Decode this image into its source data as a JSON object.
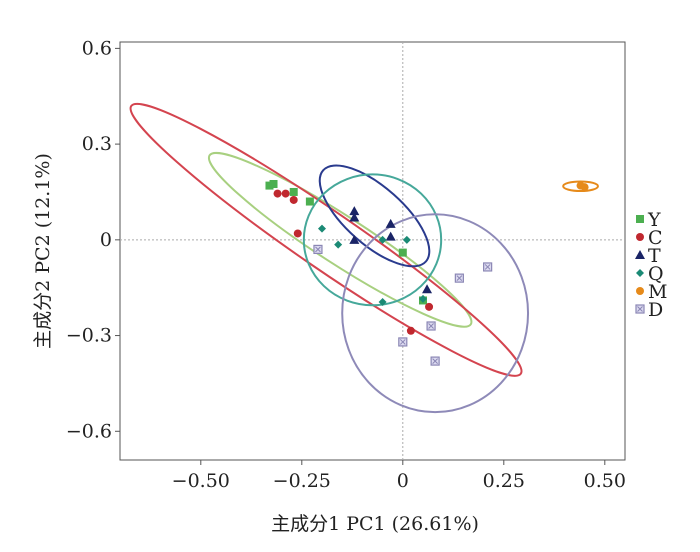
{
  "chart_data": {
    "type": "scatter",
    "title": "",
    "xlabel": "主成分1  PC1 (26.61%)",
    "ylabel": "主成分2  PC2 (12.1%)",
    "xlim": [
      -0.7,
      0.55
    ],
    "ylim": [
      -0.69,
      0.62
    ],
    "x_ticks": [
      -0.5,
      -0.25,
      0,
      0.25,
      0.5
    ],
    "x_tick_labels": [
      "−0.50",
      "−0.25",
      "0",
      "0.25",
      "0.50"
    ],
    "y_ticks": [
      -0.6,
      -0.3,
      0,
      0.3,
      0.6
    ],
    "y_tick_labels": [
      "−0.6",
      "−0.3",
      "0",
      "0.3",
      "0.6"
    ],
    "zero_lines": true,
    "grid": false,
    "legend_position": "right",
    "series": [
      {
        "name": "Y",
        "color": "#4caf50",
        "marker": "square",
        "points": [
          [
            -0.33,
            0.17
          ],
          [
            -0.32,
            0.175
          ],
          [
            -0.27,
            0.15
          ],
          [
            -0.23,
            0.12
          ],
          [
            0.0,
            -0.04
          ],
          [
            0.05,
            -0.19
          ]
        ],
        "ellipse": {
          "cx": -0.155,
          "cy": 0.0,
          "rx": 0.385,
          "ry": 0.075,
          "angle_deg": 32.9,
          "color": "#a8d080"
        }
      },
      {
        "name": "C",
        "color": "#c0282f",
        "marker": "circle",
        "points": [
          [
            -0.31,
            0.145
          ],
          [
            -0.29,
            0.145
          ],
          [
            -0.27,
            0.125
          ],
          [
            -0.26,
            0.02
          ],
          [
            0.02,
            -0.285
          ],
          [
            0.065,
            -0.21
          ]
        ],
        "ellipse": {
          "cx": -0.19,
          "cy": 0.0,
          "rx": 0.585,
          "ry": 0.09,
          "angle_deg": 34.5,
          "color": "#d4444f"
        }
      },
      {
        "name": "T",
        "color": "#1a2466",
        "marker": "triangle",
        "points": [
          [
            -0.12,
            0.09
          ],
          [
            -0.12,
            0.07
          ],
          [
            -0.12,
            0.0
          ],
          [
            -0.03,
            0.05
          ],
          [
            -0.03,
            0.01
          ],
          [
            0.06,
            -0.155
          ]
        ],
        "ellipse": {
          "cx": -0.07,
          "cy": 0.075,
          "rx": 0.17,
          "ry": 0.09,
          "angle_deg": 41.6,
          "color": "#2a3b8e"
        }
      },
      {
        "name": "Q",
        "color": "#1b8a75",
        "marker": "diamond",
        "points": [
          [
            -0.2,
            0.035
          ],
          [
            -0.16,
            -0.015
          ],
          [
            -0.05,
            0.0
          ],
          [
            0.01,
            0.0
          ],
          [
            -0.05,
            -0.195
          ],
          [
            0.05,
            -0.185
          ]
        ],
        "ellipse": {
          "cx": -0.075,
          "cy": 0.0,
          "rx": 0.17,
          "ry": 0.205,
          "angle_deg": 0,
          "color": "#46a89a"
        }
      },
      {
        "name": "M",
        "color": "#e68a1a",
        "marker": "circle",
        "points": [
          [
            0.44,
            0.17
          ],
          [
            0.45,
            0.165
          ]
        ],
        "ellipse": {
          "cx": 0.44,
          "cy": 0.168,
          "rx": 0.043,
          "ry": 0.015,
          "angle_deg": 0,
          "color": "#e68a1a"
        }
      },
      {
        "name": "D",
        "color": "#8a86b4",
        "marker": "boxed-x",
        "points": [
          [
            -0.21,
            -0.03
          ],
          [
            0.0,
            -0.32
          ],
          [
            0.07,
            -0.27
          ],
          [
            0.08,
            -0.38
          ],
          [
            0.14,
            -0.12
          ],
          [
            0.21,
            -0.085
          ]
        ],
        "ellipse": {
          "cx": 0.08,
          "cy": -0.23,
          "rx": 0.23,
          "ry": 0.31,
          "angle_deg": 0,
          "color": "#8e8ab8"
        }
      }
    ]
  }
}
